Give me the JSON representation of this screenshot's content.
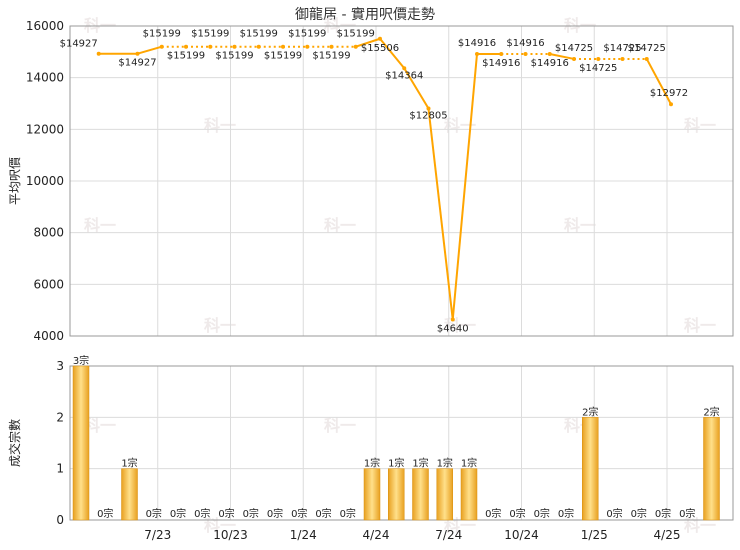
{
  "chart_data": [
    {
      "type": "line",
      "title": "御龍居 - 實用呎價走勢",
      "ylabel": "平均呎價",
      "ylim": [
        4000,
        16000
      ],
      "yticks": [
        4000,
        6000,
        8000,
        10000,
        12000,
        14000,
        16000
      ],
      "grid": true,
      "series": [
        {
          "values": [
            14927,
            14927,
            15199,
            15199,
            15199,
            15199,
            15199,
            15199,
            15199,
            15199,
            15199,
            15506,
            14364,
            12805,
            4640,
            14916,
            14916,
            14916,
            14916,
            14725,
            14725,
            14725,
            14725,
            12972
          ],
          "labels": [
            "$14927",
            "$14927",
            "$15199",
            "$15199",
            "$15199",
            "$15199",
            "$15199",
            "$15199",
            "$15199",
            "$15199",
            "$15199",
            "$15506",
            "$14364",
            "$12805",
            "$4640",
            "$14916",
            "$14916",
            "$14916",
            "$14916",
            "$14725",
            "$14725",
            "$14725",
            "$14725",
            "$12972"
          ],
          "color": "#ffa500"
        }
      ]
    },
    {
      "type": "bar",
      "ylabel": "成交宗數",
      "ylim": [
        0,
        3
      ],
      "yticks": [
        0,
        1,
        2,
        3
      ],
      "grid": true,
      "values": [
        3,
        0,
        1,
        0,
        0,
        0,
        0,
        0,
        0,
        0,
        0,
        0,
        1,
        1,
        1,
        1,
        1,
        0,
        0,
        0,
        0,
        2,
        0,
        0,
        0,
        0,
        2
      ],
      "labels": [
        "3宗",
        "0宗",
        "1宗",
        "0宗",
        "0宗",
        "0宗",
        "0宗",
        "0宗",
        "0宗",
        "0宗",
        "0宗",
        "0宗",
        "1宗",
        "1宗",
        "1宗",
        "1宗",
        "1宗",
        "0宗",
        "0宗",
        "0宗",
        "0宗",
        "2宗",
        "0宗",
        "0宗",
        "0宗",
        "0宗",
        "2宗"
      ],
      "color": "#f0a81c"
    }
  ],
  "xaxis": {
    "tick_labels": [
      "7/23",
      "10/23",
      "1/24",
      "4/24",
      "7/24",
      "10/24",
      "1/25",
      "4/25"
    ]
  },
  "watermark": "科一"
}
